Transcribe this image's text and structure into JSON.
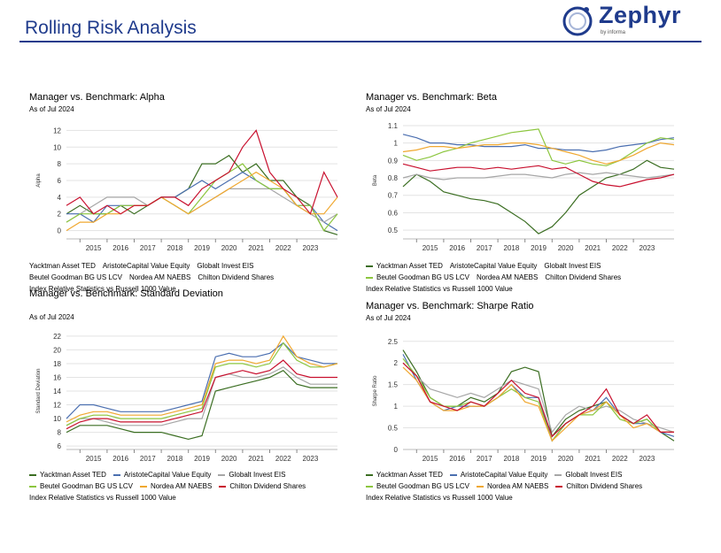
{
  "header": {
    "title": "Rolling Risk Analysis"
  },
  "logo": {
    "name": "Zephyr",
    "sub": "by informa"
  },
  "footnote": "Index Relative Statistics vs Russell 1000 Value",
  "series_colors": [
    "#3b6e22",
    "#4b6fb0",
    "#a6a6a6",
    "#8cc63f",
    "#f0a830",
    "#c8102e"
  ],
  "chart_data": [
    {
      "type": "line",
      "title": "Manager vs. Benchmark: Alpha",
      "subtitle": "As of Jul 2024",
      "ylabel": "Alpha",
      "ylim": [
        -1,
        13
      ],
      "yticks": [
        0,
        2,
        4,
        6,
        8,
        10,
        12
      ],
      "x": [
        "2014-07",
        "2015-01",
        "2015-07",
        "2016-01",
        "2016-07",
        "2017-01",
        "2017-07",
        "2018-01",
        "2018-07",
        "2019-01",
        "2019-07",
        "2020-01",
        "2020-07",
        "2021-01",
        "2021-07",
        "2022-01",
        "2022-07",
        "2023-01",
        "2023-07",
        "2024-01",
        "2024-07"
      ],
      "xticklabels": [
        "2015",
        "2016",
        "2017",
        "2018",
        "2019",
        "2020",
        "2021",
        "2022",
        "2023"
      ],
      "series": [
        {
          "name": "Yacktman Asset TED",
          "values": [
            2,
            3,
            2,
            2,
            3,
            2,
            3,
            4,
            4,
            5,
            8,
            8,
            9,
            7,
            8,
            6,
            6,
            4,
            3,
            0,
            -0.5
          ]
        },
        {
          "name": "AristoteCapital Value Equity",
          "values": [
            2,
            2,
            1,
            3,
            3,
            3,
            3,
            4,
            4,
            5,
            6,
            5,
            6,
            7,
            6,
            5,
            5,
            3,
            3,
            1,
            0
          ]
        },
        {
          "name": "Globalt Invest EIS",
          "values": [
            1,
            2,
            3,
            4,
            4,
            4,
            3,
            4,
            3,
            2,
            3,
            4,
            5,
            5,
            5,
            5,
            4,
            3,
            2,
            1,
            2
          ]
        },
        {
          "name": "Beutel Goodman BG US LCV",
          "values": [
            1,
            2,
            2,
            2,
            3,
            3,
            3,
            4,
            3,
            2,
            4,
            6,
            7,
            8,
            6,
            5,
            5,
            3,
            3,
            0,
            2
          ]
        },
        {
          "name": "Nordea AM NAEBS",
          "values": [
            0,
            1,
            1,
            2,
            2,
            3,
            3,
            4,
            3,
            2,
            3,
            4,
            5,
            6,
            7,
            6,
            5,
            3,
            2,
            2,
            4
          ]
        },
        {
          "name": "Chilton Dividend Shares",
          "values": [
            3,
            4,
            2,
            3,
            2,
            3,
            3,
            4,
            4,
            3,
            5,
            6,
            7,
            10,
            12,
            7,
            5,
            4,
            2,
            7,
            4
          ]
        }
      ]
    },
    {
      "type": "line",
      "title": "Manager vs. Benchmark: Beta",
      "subtitle": "As of Jul 2024",
      "ylabel": "Beta",
      "ylim": [
        0.45,
        1.12
      ],
      "yticks": [
        0.5,
        0.6,
        0.7,
        0.8,
        0.9,
        1.0,
        1.1
      ],
      "x": [
        "2014-07",
        "2015-01",
        "2015-07",
        "2016-01",
        "2016-07",
        "2017-01",
        "2017-07",
        "2018-01",
        "2018-07",
        "2019-01",
        "2019-07",
        "2020-01",
        "2020-07",
        "2021-01",
        "2021-07",
        "2022-01",
        "2022-07",
        "2023-01",
        "2023-07",
        "2024-01",
        "2024-07"
      ],
      "xticklabels": [
        "2015",
        "2016",
        "2017",
        "2018",
        "2019",
        "2020",
        "2021",
        "2022",
        "2023"
      ],
      "series": [
        {
          "name": "Yacktman Asset TED",
          "values": [
            0.75,
            0.82,
            0.78,
            0.72,
            0.7,
            0.68,
            0.67,
            0.65,
            0.6,
            0.55,
            0.48,
            0.52,
            0.6,
            0.7,
            0.75,
            0.8,
            0.82,
            0.85,
            0.9,
            0.86,
            0.85
          ]
        },
        {
          "name": "AristoteCapital Value Equity",
          "values": [
            1.05,
            1.03,
            1.0,
            1.0,
            0.99,
            0.99,
            0.98,
            0.98,
            0.98,
            0.99,
            0.97,
            0.97,
            0.96,
            0.96,
            0.95,
            0.96,
            0.98,
            0.99,
            1.0,
            1.02,
            1.03
          ]
        },
        {
          "name": "Globalt Invest EIS",
          "values": [
            0.8,
            0.82,
            0.8,
            0.79,
            0.8,
            0.8,
            0.8,
            0.81,
            0.82,
            0.82,
            0.81,
            0.8,
            0.82,
            0.83,
            0.82,
            0.83,
            0.82,
            0.81,
            0.8,
            0.81,
            0.82
          ]
        },
        {
          "name": "Beutel Goodman BG US LCV",
          "values": [
            0.93,
            0.9,
            0.92,
            0.95,
            0.97,
            1.0,
            1.02,
            1.04,
            1.06,
            1.07,
            1.08,
            0.9,
            0.88,
            0.9,
            0.88,
            0.87,
            0.9,
            0.95,
            1.0,
            1.03,
            1.02
          ]
        },
        {
          "name": "Nordea AM NAEBS",
          "values": [
            0.95,
            0.96,
            0.98,
            0.98,
            0.97,
            0.98,
            0.99,
            0.99,
            1.0,
            1.0,
            0.99,
            0.97,
            0.95,
            0.93,
            0.9,
            0.88,
            0.9,
            0.93,
            0.97,
            1.0,
            0.99
          ]
        },
        {
          "name": "Chilton Dividend Shares",
          "values": [
            0.88,
            0.86,
            0.84,
            0.85,
            0.86,
            0.86,
            0.85,
            0.86,
            0.85,
            0.86,
            0.87,
            0.85,
            0.86,
            0.82,
            0.78,
            0.76,
            0.75,
            0.77,
            0.79,
            0.8,
            0.82
          ]
        }
      ]
    },
    {
      "type": "line",
      "title": "Manager vs. Benchmark: Standard Deviation",
      "subtitle": "As of Jul 2024",
      "ylabel": "Standard Deviation",
      "ylim": [
        5.5,
        22.5
      ],
      "yticks": [
        6,
        8,
        10,
        12,
        14,
        16,
        18,
        20,
        22
      ],
      "x": [
        "2014-07",
        "2015-01",
        "2015-07",
        "2016-01",
        "2016-07",
        "2017-01",
        "2017-07",
        "2018-01",
        "2018-07",
        "2019-01",
        "2019-07",
        "2020-01",
        "2020-07",
        "2021-01",
        "2021-07",
        "2022-01",
        "2022-07",
        "2023-01",
        "2023-07",
        "2024-01",
        "2024-07"
      ],
      "xticklabels": [
        "2015",
        "2016",
        "2017",
        "2018",
        "2019",
        "2020",
        "2021",
        "2022",
        "2023"
      ],
      "series": [
        {
          "name": "Yacktman Asset TED",
          "values": [
            8,
            9,
            9,
            9,
            8.5,
            8,
            8,
            8,
            7.5,
            7,
            7.5,
            14,
            14.5,
            15,
            15.5,
            16,
            17,
            15,
            14.5,
            14.5,
            14.5
          ]
        },
        {
          "name": "AristoteCapital Value Equity",
          "values": [
            10,
            12,
            12,
            11.5,
            11,
            11,
            11,
            11,
            11.5,
            12,
            12.5,
            19,
            19.5,
            19,
            19,
            19.5,
            21,
            19,
            18.5,
            18,
            18
          ]
        },
        {
          "name": "Globalt Invest EIS",
          "values": [
            9,
            10,
            10,
            9.5,
            9,
            9,
            9,
            9,
            9.5,
            10,
            10,
            16,
            16.5,
            16,
            16,
            16.5,
            17.5,
            16,
            15,
            15,
            15
          ]
        },
        {
          "name": "Beutel Goodman BG US LCV",
          "values": [
            9,
            10,
            10.5,
            10.5,
            10,
            10,
            10,
            10,
            10.5,
            11,
            11.5,
            17.5,
            18,
            18,
            17.5,
            18,
            21,
            18.5,
            17.5,
            17.5,
            18
          ]
        },
        {
          "name": "Nordea AM NAEBS",
          "values": [
            9.5,
            10.5,
            11,
            11,
            10.5,
            10.5,
            10.5,
            10.5,
            11,
            11.5,
            12,
            18,
            18.5,
            18.5,
            18,
            18.5,
            22,
            19,
            18,
            17.5,
            18
          ]
        },
        {
          "name": "Chilton Dividend Shares",
          "values": [
            8.5,
            9.5,
            10,
            10,
            9.5,
            9.5,
            9.5,
            9.5,
            10,
            10.5,
            11,
            16,
            16.5,
            17,
            16.5,
            17,
            18.5,
            16.5,
            16,
            16,
            16
          ]
        }
      ]
    },
    {
      "type": "line",
      "title": "Manager vs. Benchmark: Sharpe Ratio",
      "subtitle": "As of Jul 2024",
      "ylabel": "Sharpe Ratio",
      "ylim": [
        0,
        2.7
      ],
      "yticks": [
        0.0,
        0.5,
        1.0,
        1.5,
        2.0,
        2.5
      ],
      "x": [
        "2014-07",
        "2015-01",
        "2015-07",
        "2016-01",
        "2016-07",
        "2017-01",
        "2017-07",
        "2018-01",
        "2018-07",
        "2019-01",
        "2019-07",
        "2020-01",
        "2020-07",
        "2021-01",
        "2021-07",
        "2022-01",
        "2022-07",
        "2023-01",
        "2023-07",
        "2024-01",
        "2024-07"
      ],
      "xticklabels": [
        "2015",
        "2016",
        "2017",
        "2018",
        "2019",
        "2020",
        "2021",
        "2022",
        "2023"
      ],
      "series": [
        {
          "name": "Yacktman Asset TED",
          "values": [
            2.3,
            1.8,
            1.2,
            1.0,
            1.0,
            1.2,
            1.1,
            1.3,
            1.8,
            1.9,
            1.8,
            0.3,
            0.7,
            0.9,
            1.0,
            1.1,
            0.8,
            0.6,
            0.7,
            0.4,
            0.2
          ]
        },
        {
          "name": "AristoteCapital Value Equity",
          "values": [
            2.2,
            1.6,
            1.1,
            0.9,
            1.0,
            1.0,
            1.0,
            1.2,
            1.5,
            1.2,
            1.2,
            0.2,
            0.6,
            0.8,
            0.9,
            1.2,
            0.8,
            0.6,
            0.6,
            0.4,
            0.3
          ]
        },
        {
          "name": "Globalt Invest EIS",
          "values": [
            2.0,
            1.7,
            1.4,
            1.3,
            1.2,
            1.3,
            1.2,
            1.4,
            1.6,
            1.5,
            1.4,
            0.4,
            0.8,
            1.0,
            0.9,
            1.0,
            0.9,
            0.7,
            0.6,
            0.5,
            0.4
          ]
        },
        {
          "name": "Beutel Goodman BG US LCV",
          "values": [
            2.1,
            1.7,
            1.2,
            1.0,
            1.0,
            1.1,
            1.0,
            1.2,
            1.4,
            1.2,
            1.1,
            0.2,
            0.6,
            0.8,
            0.8,
            1.1,
            0.7,
            0.6,
            0.7,
            0.4,
            0.4
          ]
        },
        {
          "name": "Nordea AM NAEBS",
          "values": [
            1.9,
            1.6,
            1.1,
            0.9,
            0.9,
            1.0,
            1.0,
            1.2,
            1.5,
            1.1,
            1.0,
            0.2,
            0.5,
            0.8,
            0.9,
            1.1,
            0.8,
            0.5,
            0.6,
            0.4,
            0.4
          ]
        },
        {
          "name": "Chilton Dividend Shares",
          "values": [
            2.0,
            1.7,
            1.1,
            1.0,
            0.9,
            1.1,
            1.0,
            1.3,
            1.6,
            1.3,
            1.2,
            0.3,
            0.6,
            0.8,
            1.0,
            1.4,
            0.8,
            0.6,
            0.8,
            0.4,
            0.4
          ]
        }
      ]
    }
  ]
}
